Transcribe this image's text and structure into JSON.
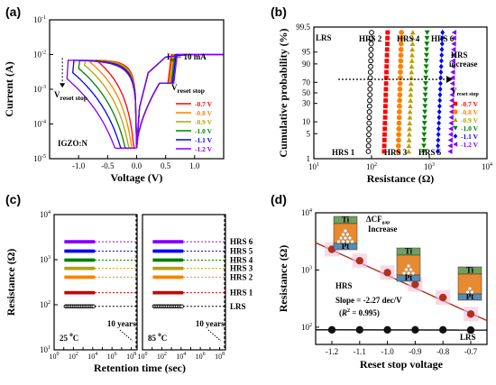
{
  "chart_data": [
    {
      "panel": "(a)",
      "type": "line",
      "xlabel": "Voltage (V)",
      "ylabel": "Current (A)",
      "yscale": "log",
      "xlim": [
        -1.5,
        1.5
      ],
      "ylim": [
        1e-05,
        0.1
      ],
      "xticks": [
        "-1.0",
        "-0.5",
        "0.0",
        "0.5",
        "1.0"
      ],
      "yticks": [
        "10",
        "10",
        "10",
        "10",
        "10"
      ],
      "ytick_exps": [
        "-5",
        "-4",
        "-3",
        "-2",
        "-1"
      ],
      "annotations": {
        "icc": "I",
        "icc_sub": "cc",
        "icc_rest": " = 10 mA",
        "vstop": "V",
        "vstop_sub": "reset stop",
        "legend_title": "V",
        "legend_title_sub": "reset stop",
        "material": "IGZO:N"
      },
      "series": [
        {
          "name": "-0.7 V",
          "color": "#ff0000",
          "vstop": -0.7
        },
        {
          "name": "-0.8 V",
          "color": "#ff8000",
          "vstop": -0.8
        },
        {
          "name": "-0.9 V",
          "color": "#b8a000",
          "vstop": -0.9
        },
        {
          "name": "-1.0 V",
          "color": "#008000",
          "vstop": -1.0
        },
        {
          "name": "-1.1 V",
          "color": "#0000ff",
          "vstop": -1.1
        },
        {
          "name": "-1.2 V",
          "color": "#8000ff",
          "vstop": -1.2
        }
      ]
    },
    {
      "panel": "(b)",
      "type": "scatter",
      "xlabel": "Resistance (Ω)",
      "ylabel": "Cumulative probability (%)",
      "xscale": "log",
      "xlim": [
        10,
        10000
      ],
      "yticks": [
        "1",
        "5",
        "10",
        "30",
        "50",
        "70",
        "90",
        "95",
        "99.5"
      ],
      "xticks": [
        "10",
        "10",
        "10",
        "10"
      ],
      "xtick_exps": [
        "1",
        "2",
        "3",
        "4"
      ],
      "labels": [
        "LRS",
        "HRS 1",
        "HRS 2",
        "HRS 3",
        "HRS 4",
        "HRS 5",
        "HRS 6"
      ],
      "arrow_label": [
        "HRS",
        "increase"
      ],
      "legend_title": "V",
      "legend_title_sub": "reset stop",
      "series": [
        {
          "name": "LRS",
          "color": "#000000",
          "r_low": 88,
          "r_high": 100,
          "marker": "circle-open"
        },
        {
          "name": "-0.7 V",
          "color": "#ff0000",
          "r_low": 165,
          "r_high": 190,
          "marker": "square"
        },
        {
          "name": "-0.8 V",
          "color": "#ff8000",
          "r_low": 290,
          "r_high": 330,
          "marker": "circle"
        },
        {
          "name": "-0.9 V",
          "color": "#b8a000",
          "r_low": 440,
          "r_high": 520,
          "marker": "triangle"
        },
        {
          "name": "-1.0 V",
          "color": "#008000",
          "r_low": 800,
          "r_high": 920,
          "marker": "triangle-down"
        },
        {
          "name": "-1.1 V",
          "color": "#0000ff",
          "r_low": 1400,
          "r_high": 1700,
          "marker": "diamond"
        },
        {
          "name": "-1.2 V",
          "color": "#8000ff",
          "r_low": 2300,
          "r_high": 2700,
          "marker": "triangle-left"
        }
      ]
    },
    {
      "panel": "(c)",
      "type": "scatter",
      "xlabel": "Retention time (sec)",
      "ylabel": "Resistance (Ω)",
      "yscale": "log",
      "xscale": "log",
      "ylim": [
        10,
        10000
      ],
      "xlim": [
        1,
        100000000
      ],
      "xtick_exps": [
        "0",
        "1",
        "2",
        "3",
        "4",
        "5",
        "6",
        "7",
        "8"
      ],
      "ytick_exps": [
        "1",
        "2",
        "3",
        "4"
      ],
      "temps": [
        {
          "value": "25",
          "unit": "C",
          "color": "#2222dd"
        },
        {
          "value": "85",
          "unit": "C",
          "color": "#dd2222"
        }
      ],
      "ten_years": "10 years",
      "series": [
        {
          "name": "HRS 6",
          "color": "#8000ff",
          "r": 2500
        },
        {
          "name": "HRS 5",
          "color": "#0000ff",
          "r": 1550
        },
        {
          "name": "HRS 4",
          "color": "#008000",
          "r": 980
        },
        {
          "name": "HRS 3",
          "color": "#b8a000",
          "r": 640
        },
        {
          "name": "HRS 2",
          "color": "#ff8000",
          "r": 410
        },
        {
          "name": "HRS 1",
          "color": "#cc0000",
          "r": 185
        },
        {
          "name": "LRS",
          "color": "#000000",
          "r": 92
        }
      ]
    },
    {
      "panel": "(d)",
      "type": "scatter",
      "xlabel": "Reset stop voltage",
      "ylabel": "Resistance (Ω)",
      "yscale": "log",
      "ylim": [
        50,
        10000
      ],
      "categories": [
        "-1.2",
        "-1.1",
        "-1.0",
        "-0.9",
        "-0.8",
        "-0.7"
      ],
      "ytick_exps": [
        "2",
        "3",
        "4"
      ],
      "hrs": [
        2300,
        1450,
        900,
        560,
        330,
        170
      ],
      "lrs": [
        90,
        90,
        90,
        90,
        90,
        89
      ],
      "labels": {
        "hrs": "HRS",
        "lrs": "LRS",
        "slope": "Slope = -2.27 dec/V",
        "r2_pre": "(",
        "r2_r": "R",
        "r2_sup": "2",
        "r2_post": " = 0.995)",
        "cf_pre": "ΔCF",
        "cf_sub": "gap",
        "cf_post": "Increase",
        "ti": "Ti",
        "pt": "Pt"
      }
    }
  ]
}
